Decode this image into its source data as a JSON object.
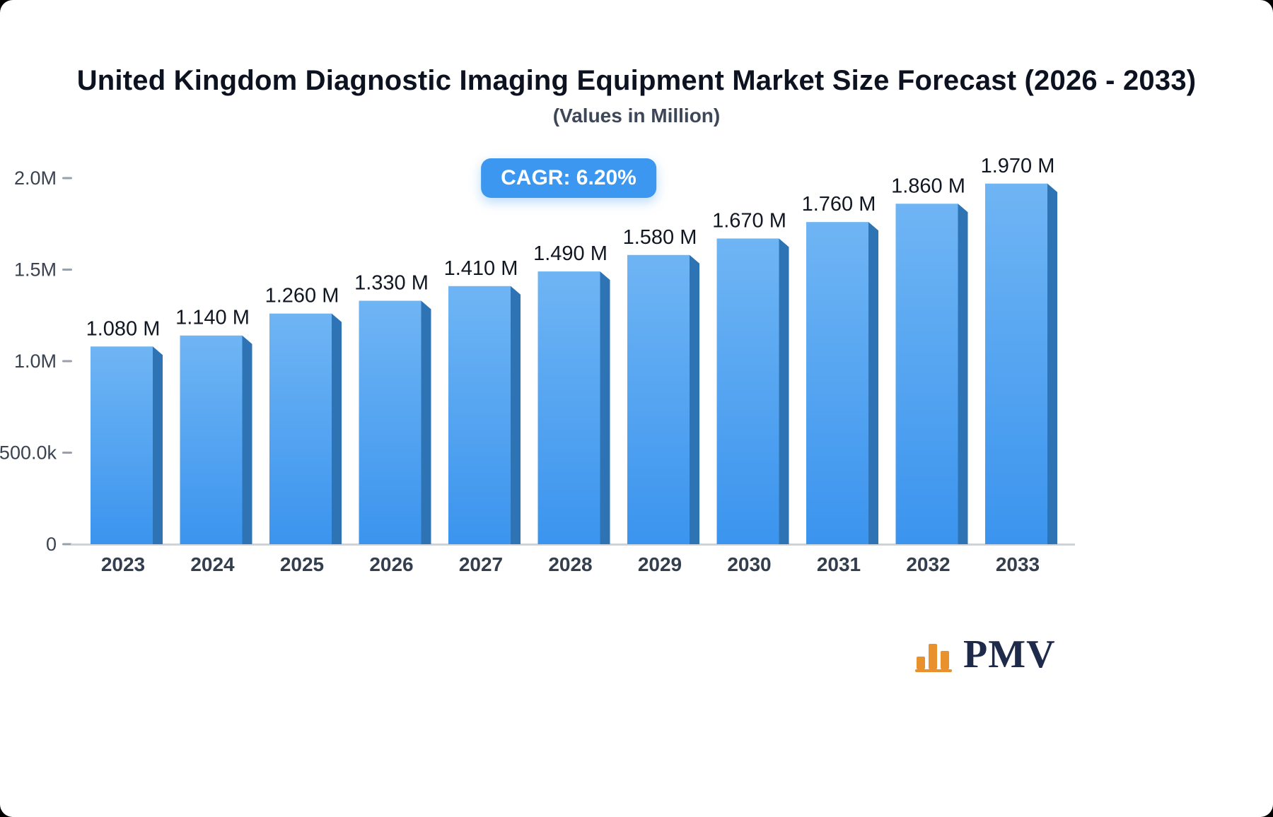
{
  "page": {
    "title": "United Kingdom Diagnostic Imaging Equipment Market Size Forecast (2026 - 2033)",
    "subtitle": "(Values in Million)",
    "cagr_label": "CAGR: 6.20%",
    "brand": "PMV"
  },
  "chart_data": {
    "type": "bar",
    "title": "United Kingdom Diagnostic Imaging Equipment Market Size Forecast (2026 - 2033)",
    "subtitle": "(Values in Million)",
    "unit": "Million",
    "cagr": "6.20%",
    "categories": [
      "2023",
      "2024",
      "2025",
      "2026",
      "2027",
      "2028",
      "2029",
      "2030",
      "2031",
      "2032",
      "2033"
    ],
    "values": [
      1.08,
      1.14,
      1.26,
      1.33,
      1.41,
      1.49,
      1.58,
      1.67,
      1.76,
      1.86,
      1.97
    ],
    "value_labels": [
      "1.080 M",
      "1.140 M",
      "1.260 M",
      "1.330 M",
      "1.410 M",
      "1.490 M",
      "1.580 M",
      "1.670 M",
      "1.760 M",
      "1.860 M",
      "1.970 M"
    ],
    "y_ticks": [
      {
        "label": "2.0M",
        "value": 2.0
      },
      {
        "label": "1.5M",
        "value": 1.5
      },
      {
        "label": "1.0M",
        "value": 1.0
      },
      {
        "label": "500.0k",
        "value": 0.5
      },
      {
        "label": "0",
        "value": 0
      }
    ],
    "ylim": [
      0,
      2.0
    ],
    "grid": false,
    "legend": false,
    "colors": {
      "bar_top": "#6FB5F4",
      "bar_bottom": "#3B94EE",
      "bar_side": "#2E74B5",
      "badge_bg": "#3B97EF",
      "axis_line": "#CDD3DA",
      "tick_mark": "#97A0AB",
      "tick_text": "#3A4350",
      "value_text": "#101722",
      "category_text": "#333F4E",
      "brand_orange": "#E8912D",
      "brand_navy": "#1E2A4A"
    }
  }
}
